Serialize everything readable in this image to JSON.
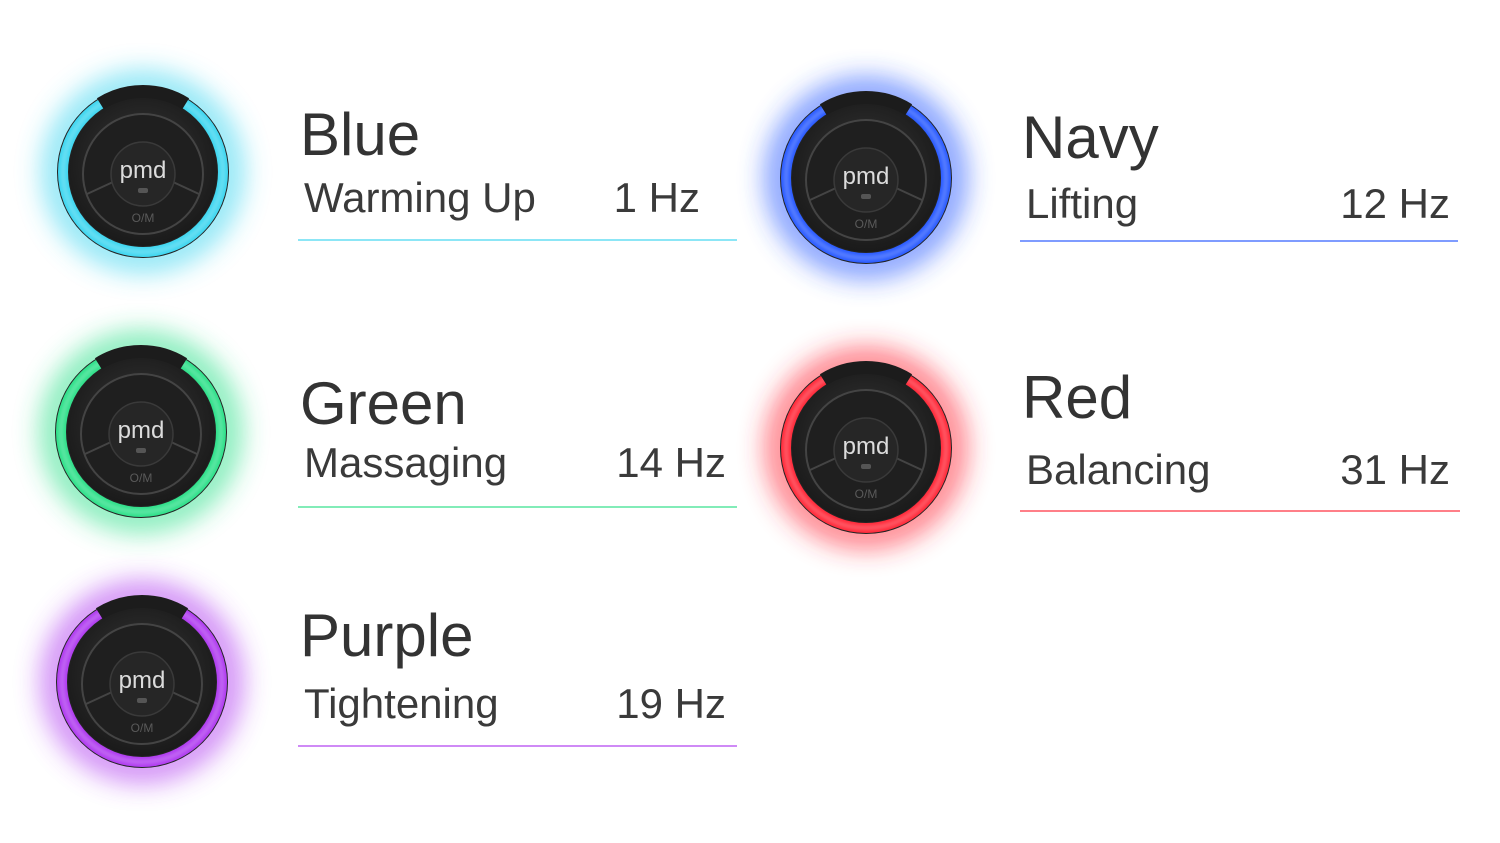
{
  "device_label": "pmd",
  "button_label": "O/M",
  "modes": [
    {
      "name": "Blue",
      "function": "Warming Up",
      "frequency": "1 Hz",
      "color": "#3fd6f0"
    },
    {
      "name": "Navy",
      "function": "Lifting",
      "frequency": "12 Hz",
      "color": "#2a5bff"
    },
    {
      "name": "Green",
      "function": "Massaging",
      "frequency": "14 Hz",
      "color": "#2fe08a"
    },
    {
      "name": "Red",
      "function": "Balancing",
      "frequency": "31 Hz",
      "color": "#ff2a3a"
    },
    {
      "name": "Purple",
      "function": "Tightening",
      "frequency": "19 Hz",
      "color": "#b03cf0"
    }
  ]
}
